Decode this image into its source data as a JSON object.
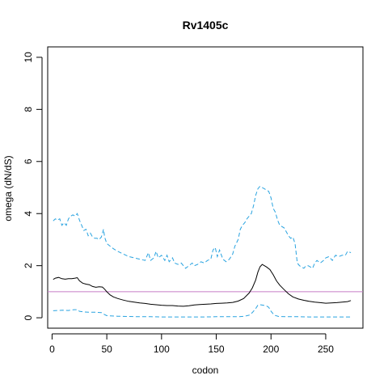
{
  "chart_data": {
    "type": "line",
    "title": "Rv1405c",
    "xlabel": "codon",
    "ylabel": "omega (dN/dS)",
    "xlim": [
      -4,
      284
    ],
    "ylim": [
      -0.4,
      10.4
    ],
    "x_ticks": [
      0,
      50,
      100,
      150,
      200,
      250
    ],
    "y_ticks": [
      0,
      2,
      4,
      6,
      8,
      10
    ],
    "grid": false,
    "reference_line": {
      "y": 1,
      "color": "#c77cc8"
    },
    "series": [
      {
        "style": "solid",
        "color": "#000000",
        "points": [
          [
            1,
            1.47
          ],
          [
            3,
            1.52
          ],
          [
            6,
            1.55
          ],
          [
            9,
            1.5
          ],
          [
            12,
            1.48
          ],
          [
            15,
            1.5
          ],
          [
            18,
            1.5
          ],
          [
            21,
            1.52
          ],
          [
            23,
            1.54
          ],
          [
            25,
            1.42
          ],
          [
            28,
            1.33
          ],
          [
            31,
            1.29
          ],
          [
            34,
            1.27
          ],
          [
            37,
            1.2
          ],
          [
            40,
            1.17
          ],
          [
            43,
            1.19
          ],
          [
            46,
            1.18
          ],
          [
            48,
            1.1
          ],
          [
            50,
            1.0
          ],
          [
            53,
            0.88
          ],
          [
            56,
            0.8
          ],
          [
            60,
            0.74
          ],
          [
            65,
            0.68
          ],
          [
            70,
            0.63
          ],
          [
            75,
            0.6
          ],
          [
            80,
            0.57
          ],
          [
            85,
            0.55
          ],
          [
            90,
            0.52
          ],
          [
            95,
            0.5
          ],
          [
            100,
            0.48
          ],
          [
            105,
            0.47
          ],
          [
            110,
            0.47
          ],
          [
            115,
            0.45
          ],
          [
            120,
            0.44
          ],
          [
            125,
            0.46
          ],
          [
            130,
            0.49
          ],
          [
            135,
            0.51
          ],
          [
            140,
            0.52
          ],
          [
            145,
            0.53
          ],
          [
            150,
            0.55
          ],
          [
            155,
            0.56
          ],
          [
            160,
            0.57
          ],
          [
            165,
            0.59
          ],
          [
            170,
            0.64
          ],
          [
            175,
            0.74
          ],
          [
            180,
            0.95
          ],
          [
            183,
            1.15
          ],
          [
            186,
            1.45
          ],
          [
            188,
            1.75
          ],
          [
            190,
            1.96
          ],
          [
            192,
            2.05
          ],
          [
            194,
            2.0
          ],
          [
            196,
            1.95
          ],
          [
            199,
            1.85
          ],
          [
            202,
            1.65
          ],
          [
            205,
            1.42
          ],
          [
            208,
            1.25
          ],
          [
            212,
            1.08
          ],
          [
            216,
            0.92
          ],
          [
            220,
            0.8
          ],
          [
            225,
            0.72
          ],
          [
            230,
            0.67
          ],
          [
            235,
            0.63
          ],
          [
            240,
            0.6
          ],
          [
            245,
            0.58
          ],
          [
            250,
            0.56
          ],
          [
            255,
            0.57
          ],
          [
            260,
            0.58
          ],
          [
            265,
            0.6
          ],
          [
            270,
            0.62
          ],
          [
            273,
            0.66
          ]
        ]
      },
      {
        "style": "dashed",
        "color": "#29a3e0",
        "points": [
          [
            1,
            3.72
          ],
          [
            3,
            3.8
          ],
          [
            5,
            3.75
          ],
          [
            7,
            3.8
          ],
          [
            9,
            3.55
          ],
          [
            11,
            3.65
          ],
          [
            13,
            3.55
          ],
          [
            15,
            3.8
          ],
          [
            17,
            3.9
          ],
          [
            19,
            3.95
          ],
          [
            21,
            3.9
          ],
          [
            23,
            4.0
          ],
          [
            25,
            3.75
          ],
          [
            27,
            3.55
          ],
          [
            29,
            3.35
          ],
          [
            31,
            3.4
          ],
          [
            33,
            3.15
          ],
          [
            35,
            3.25
          ],
          [
            37,
            3.1
          ],
          [
            39,
            3.05
          ],
          [
            41,
            3.05
          ],
          [
            43,
            3.0
          ],
          [
            45,
            3.1
          ],
          [
            47,
            3.4
          ],
          [
            48,
            3.1
          ],
          [
            50,
            2.85
          ],
          [
            53,
            2.75
          ],
          [
            56,
            2.65
          ],
          [
            60,
            2.55
          ],
          [
            65,
            2.45
          ],
          [
            70,
            2.35
          ],
          [
            75,
            2.3
          ],
          [
            80,
            2.25
          ],
          [
            85,
            2.2
          ],
          [
            88,
            2.5
          ],
          [
            90,
            2.2
          ],
          [
            93,
            2.3
          ],
          [
            95,
            2.55
          ],
          [
            97,
            2.3
          ],
          [
            100,
            2.4
          ],
          [
            103,
            2.2
          ],
          [
            105,
            2.4
          ],
          [
            107,
            2.15
          ],
          [
            110,
            2.3
          ],
          [
            112,
            2.1
          ],
          [
            115,
            2.05
          ],
          [
            118,
            2.1
          ],
          [
            120,
            2.0
          ],
          [
            122,
            1.9
          ],
          [
            125,
            2.0
          ],
          [
            128,
            2.1
          ],
          [
            130,
            2.0
          ],
          [
            133,
            2.05
          ],
          [
            136,
            2.15
          ],
          [
            139,
            2.1
          ],
          [
            142,
            2.2
          ],
          [
            145,
            2.25
          ],
          [
            147,
            2.6
          ],
          [
            149,
            2.7
          ],
          [
            151,
            2.35
          ],
          [
            153,
            2.6
          ],
          [
            156,
            2.25
          ],
          [
            159,
            2.15
          ],
          [
            162,
            2.25
          ],
          [
            165,
            2.45
          ],
          [
            167,
            2.75
          ],
          [
            170,
            3.0
          ],
          [
            172,
            3.4
          ],
          [
            174,
            3.55
          ],
          [
            176,
            3.65
          ],
          [
            178,
            3.8
          ],
          [
            180,
            3.9
          ],
          [
            182,
            4.0
          ],
          [
            184,
            4.3
          ],
          [
            186,
            4.7
          ],
          [
            188,
            4.95
          ],
          [
            190,
            5.05
          ],
          [
            192,
            5.0
          ],
          [
            194,
            4.95
          ],
          [
            196,
            4.9
          ],
          [
            198,
            4.85
          ],
          [
            200,
            4.6
          ],
          [
            202,
            4.2
          ],
          [
            204,
            4.05
          ],
          [
            206,
            3.75
          ],
          [
            208,
            3.55
          ],
          [
            210,
            3.5
          ],
          [
            212,
            3.45
          ],
          [
            214,
            3.3
          ],
          [
            216,
            3.15
          ],
          [
            218,
            3.05
          ],
          [
            220,
            3.1
          ],
          [
            222,
            2.85
          ],
          [
            224,
            2.1
          ],
          [
            226,
            2.0
          ],
          [
            228,
            1.95
          ],
          [
            230,
            1.9
          ],
          [
            232,
            2.0
          ],
          [
            234,
            2.0
          ],
          [
            236,
            1.95
          ],
          [
            238,
            1.9
          ],
          [
            240,
            2.1
          ],
          [
            242,
            2.2
          ],
          [
            245,
            2.1
          ],
          [
            248,
            2.2
          ],
          [
            250,
            2.3
          ],
          [
            253,
            2.35
          ],
          [
            256,
            2.2
          ],
          [
            259,
            2.4
          ],
          [
            262,
            2.35
          ],
          [
            265,
            2.4
          ],
          [
            268,
            2.4
          ],
          [
            270,
            2.55
          ],
          [
            273,
            2.5
          ]
        ]
      },
      {
        "style": "dashed",
        "color": "#29a3e0",
        "points": [
          [
            1,
            0.27
          ],
          [
            5,
            0.28
          ],
          [
            10,
            0.29
          ],
          [
            15,
            0.28
          ],
          [
            20,
            0.31
          ],
          [
            23,
            0.31
          ],
          [
            25,
            0.25
          ],
          [
            30,
            0.22
          ],
          [
            35,
            0.21
          ],
          [
            40,
            0.21
          ],
          [
            45,
            0.2
          ],
          [
            48,
            0.12
          ],
          [
            50,
            0.08
          ],
          [
            55,
            0.07
          ],
          [
            60,
            0.06
          ],
          [
            70,
            0.05
          ],
          [
            80,
            0.04
          ],
          [
            90,
            0.04
          ],
          [
            100,
            0.03
          ],
          [
            110,
            0.03
          ],
          [
            120,
            0.03
          ],
          [
            130,
            0.03
          ],
          [
            140,
            0.03
          ],
          [
            150,
            0.04
          ],
          [
            160,
            0.04
          ],
          [
            170,
            0.04
          ],
          [
            176,
            0.06
          ],
          [
            180,
            0.1
          ],
          [
            183,
            0.2
          ],
          [
            186,
            0.35
          ],
          [
            188,
            0.48
          ],
          [
            190,
            0.5
          ],
          [
            193,
            0.48
          ],
          [
            196,
            0.45
          ],
          [
            198,
            0.4
          ],
          [
            200,
            0.25
          ],
          [
            203,
            0.1
          ],
          [
            207,
            0.05
          ],
          [
            215,
            0.04
          ],
          [
            225,
            0.04
          ],
          [
            235,
            0.03
          ],
          [
            245,
            0.03
          ],
          [
            255,
            0.03
          ],
          [
            265,
            0.03
          ],
          [
            273,
            0.03
          ]
        ]
      }
    ]
  }
}
